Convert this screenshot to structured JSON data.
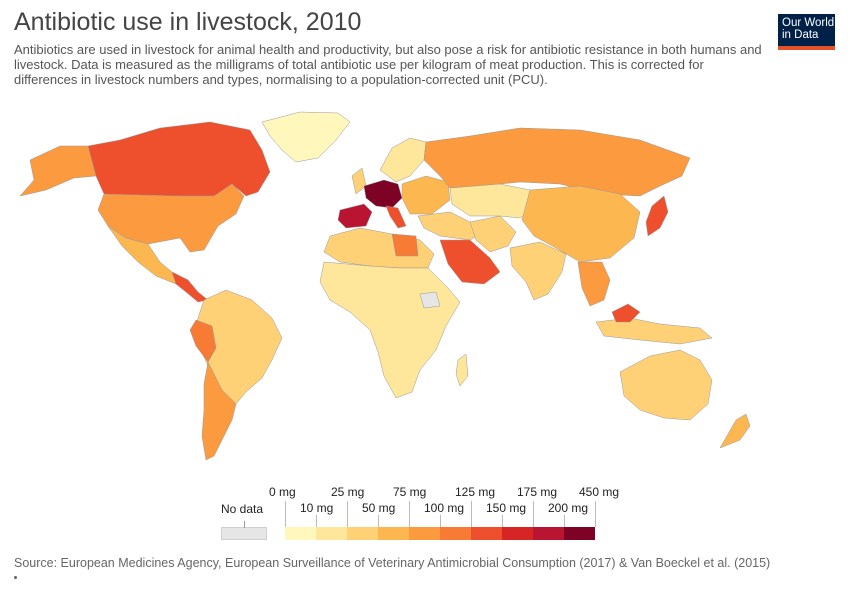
{
  "header": {
    "title": "Antibiotic use in livestock, 2010",
    "subtitle": "Antibiotics are used in livestock for animal health and productivity, but also pose a risk for antibiotic resistance in both humans and livestock. Data is measured as the milligrams of total antibiotic use per kilogram of meat production. This is corrected for differences in livestock numbers and types, normalising to a population-corrected unit (PCU)."
  },
  "logo": {
    "line1": "Our World",
    "line2": "in Data"
  },
  "legend": {
    "no_data_label": "No data",
    "top_labels": [
      "0 mg",
      "25 mg",
      "75 mg",
      "125 mg",
      "175 mg",
      "450 mg"
    ],
    "bottom_labels": [
      "10 mg",
      "50 mg",
      "100 mg",
      "150 mg",
      "200 mg"
    ],
    "bins": [
      {
        "min": 0,
        "max": 10,
        "color": "#fff7bc"
      },
      {
        "min": 10,
        "max": 25,
        "color": "#fee69a"
      },
      {
        "min": 25,
        "max": 50,
        "color": "#fed177"
      },
      {
        "min": 50,
        "max": 75,
        "color": "#fdb751"
      },
      {
        "min": 75,
        "max": 100,
        "color": "#fb9a3f"
      },
      {
        "min": 100,
        "max": 125,
        "color": "#f77a35"
      },
      {
        "min": 125,
        "max": 150,
        "color": "#ee4f2c"
      },
      {
        "min": 150,
        "max": 175,
        "color": "#d72525"
      },
      {
        "min": 175,
        "max": 200,
        "color": "#b91532"
      },
      {
        "min": 200,
        "max": 450,
        "color": "#7d0225"
      }
    ],
    "no_data_color": "#e6e6e6"
  },
  "footer": {
    "source": "Source: European Medicines Agency, European Surveillance of Veterinary Antimicrobial Consumption (2017) & Van Boeckel et al. (2015)"
  }
}
